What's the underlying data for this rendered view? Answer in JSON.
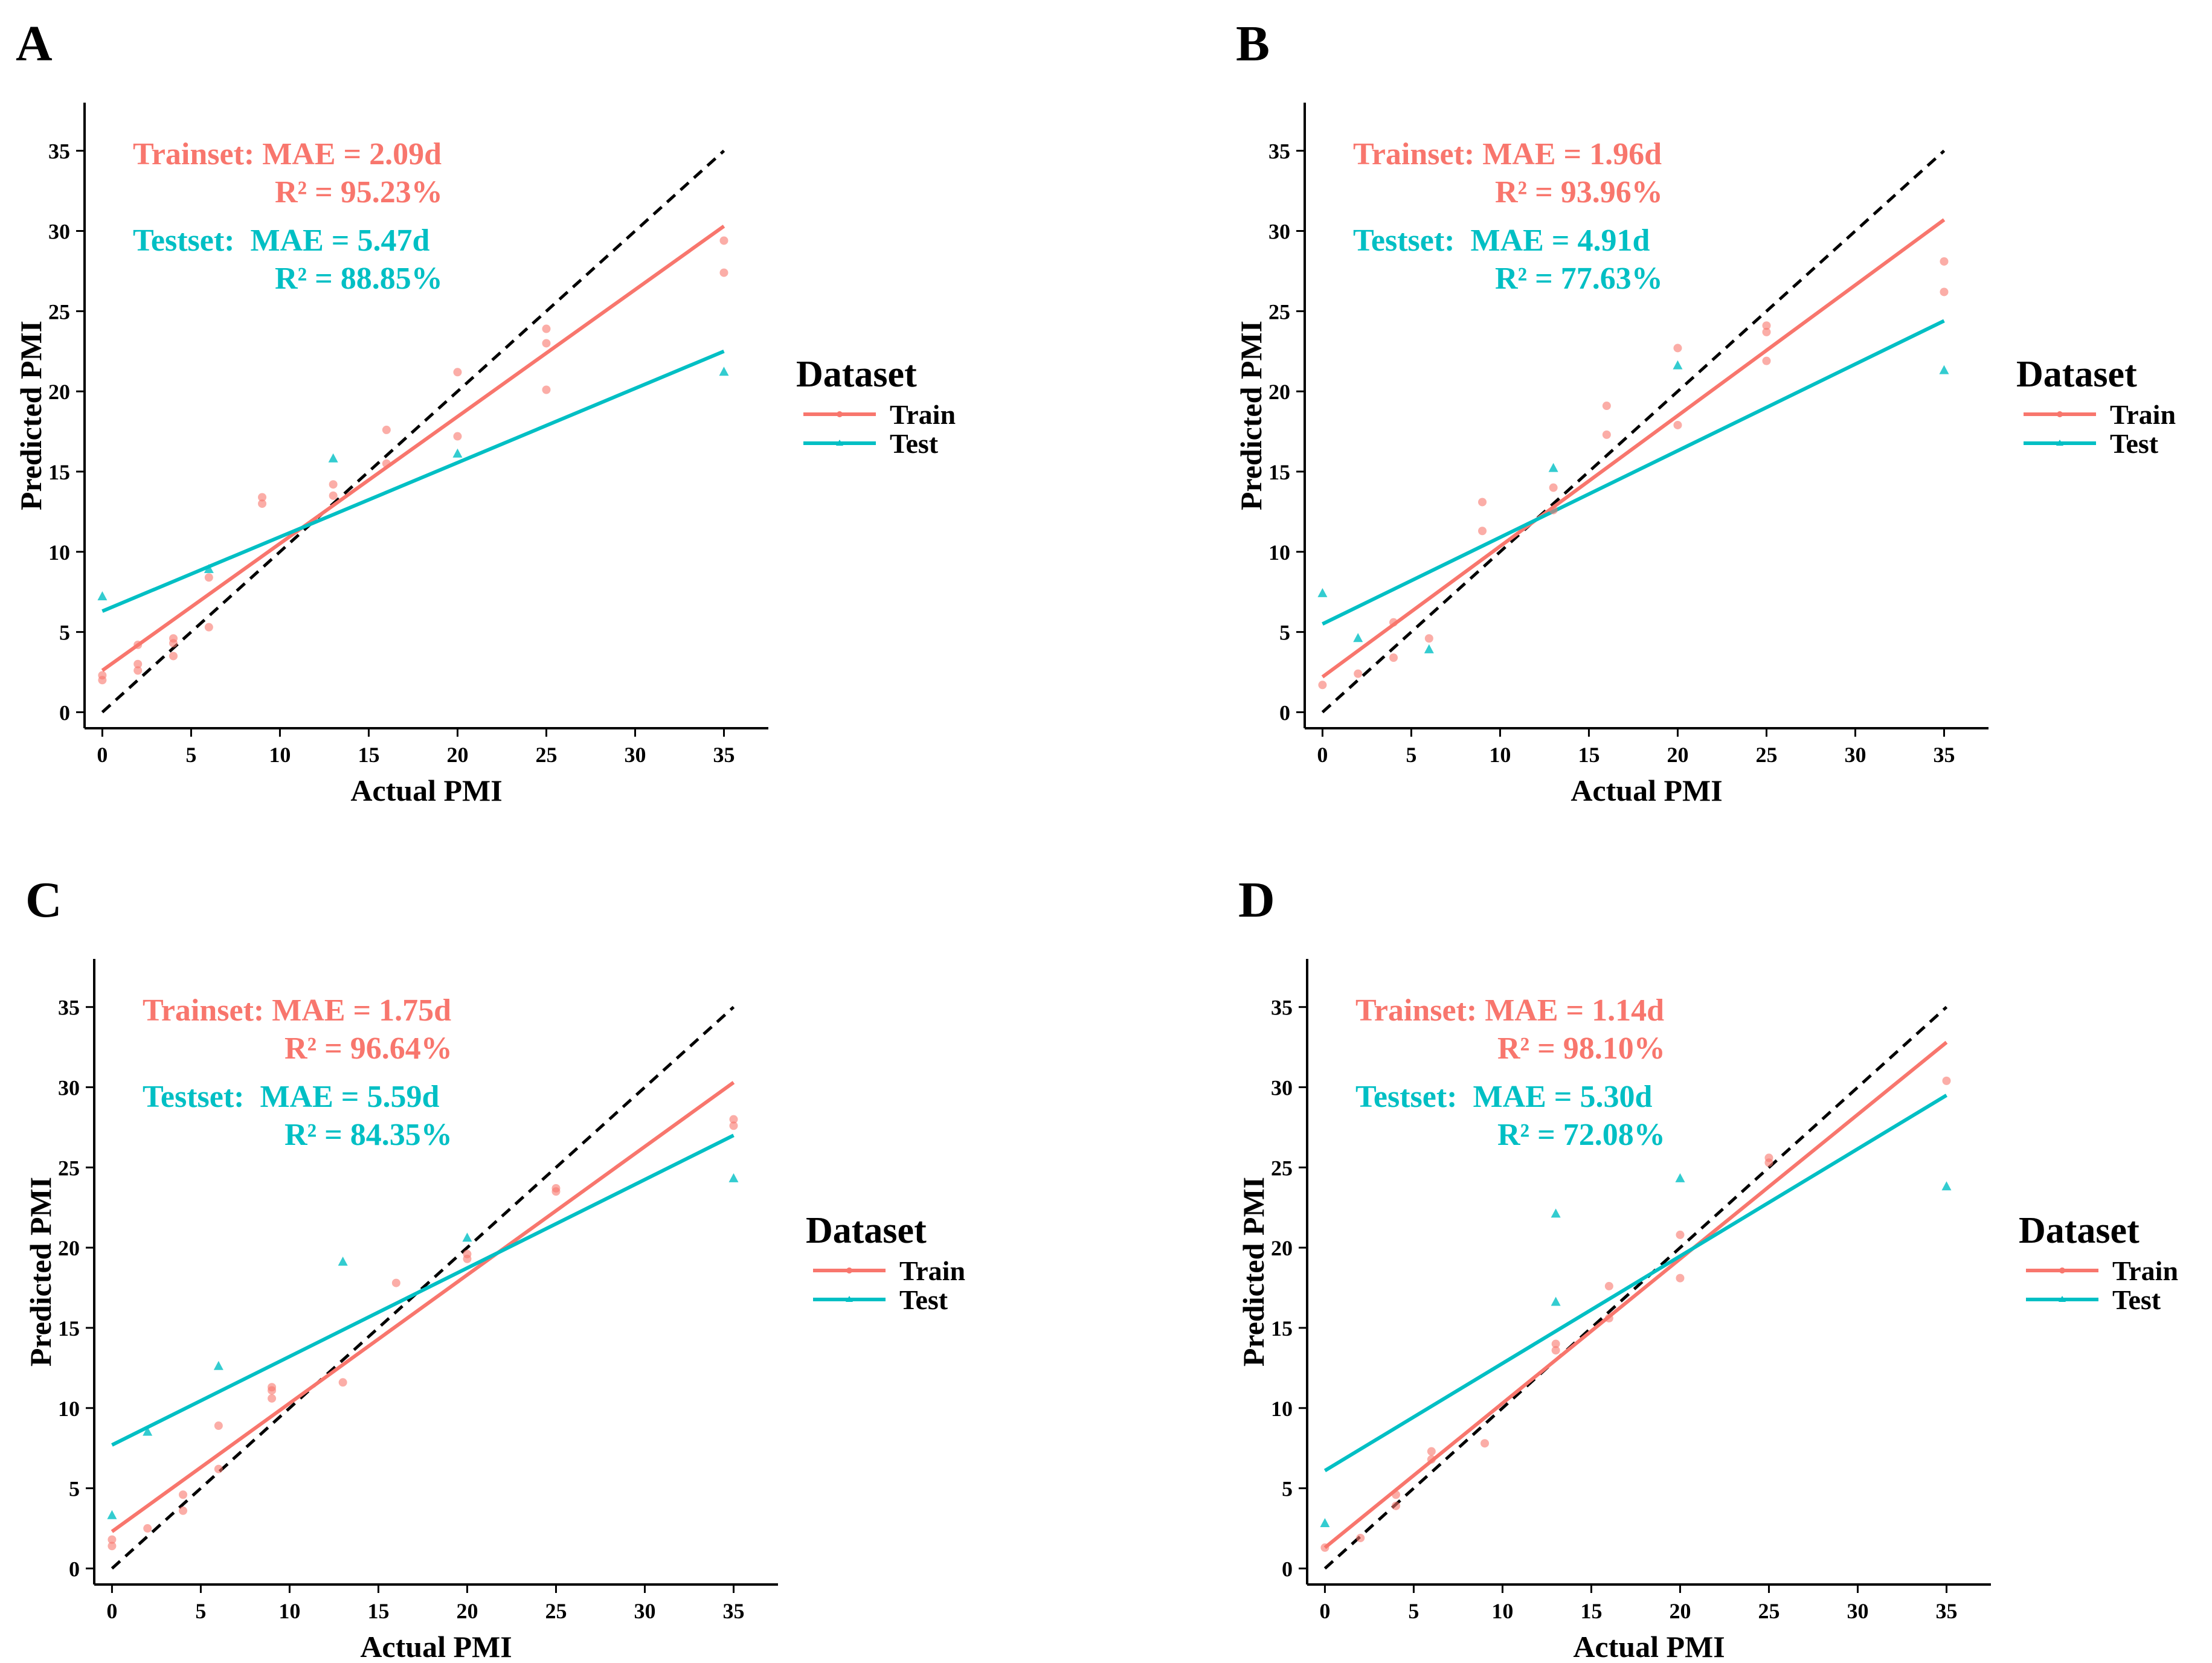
{
  "colors": {
    "train": "#F8766D",
    "test": "#00BFC4",
    "axis": "#000000"
  },
  "legend": {
    "title": "Dataset",
    "train_label": "Train",
    "test_label": "Test"
  },
  "chart_data": [
    {
      "panel": "A",
      "type": "scatter",
      "xlabel": "Actual PMI",
      "ylabel": "Predicted PMI",
      "xlim": [
        -1,
        37.5
      ],
      "ylim": [
        -1,
        38
      ],
      "xticks": [
        0,
        5,
        10,
        15,
        20,
        25,
        30,
        35
      ],
      "yticks": [
        0,
        5,
        10,
        15,
        20,
        25,
        30,
        35
      ],
      "stats": {
        "train_line1": "Trainset: MAE = 2.09d",
        "train_line2": "R² = 95.23%",
        "test_line1": "Testset:  MAE = 5.47d",
        "test_line2": "R² = 88.85%"
      },
      "identity_line": [
        [
          0,
          0
        ],
        [
          35,
          35
        ]
      ],
      "train_fit": [
        [
          0,
          2.6
        ],
        [
          35,
          30.3
        ]
      ],
      "test_fit": [
        [
          0,
          6.3
        ],
        [
          35,
          22.5
        ]
      ],
      "series": [
        {
          "name": "Train",
          "marker": "circle",
          "points": [
            [
              0,
              2.0
            ],
            [
              0,
              2.3
            ],
            [
              2,
              2.6
            ],
            [
              2,
              3.0
            ],
            [
              2,
              4.2
            ],
            [
              4,
              3.5
            ],
            [
              4,
              4.3
            ],
            [
              4,
              4.6
            ],
            [
              6,
              5.3
            ],
            [
              6,
              8.4
            ],
            [
              9,
              13.0
            ],
            [
              9,
              13.4
            ],
            [
              13,
              13.5
            ],
            [
              13,
              14.2
            ],
            [
              16,
              15.5
            ],
            [
              16,
              17.6
            ],
            [
              20,
              17.2
            ],
            [
              20,
              21.2
            ],
            [
              25,
              20.1
            ],
            [
              25,
              23.0
            ],
            [
              25,
              23.9
            ],
            [
              35,
              27.4
            ],
            [
              35,
              29.4
            ]
          ]
        },
        {
          "name": "Test",
          "marker": "triangle",
          "points": [
            [
              0,
              7.2
            ],
            [
              6,
              8.9
            ],
            [
              13,
              15.8
            ],
            [
              20,
              16.1
            ],
            [
              35,
              21.2
            ]
          ]
        }
      ]
    },
    {
      "panel": "B",
      "type": "scatter",
      "xlabel": "Actual PMI",
      "ylabel": "Predicted PMI",
      "xlim": [
        -1,
        37.5
      ],
      "ylim": [
        -1,
        38
      ],
      "xticks": [
        0,
        5,
        10,
        15,
        20,
        25,
        30,
        35
      ],
      "yticks": [
        0,
        5,
        10,
        15,
        20,
        25,
        30,
        35
      ],
      "stats": {
        "train_line1": "Trainset: MAE = 1.96d",
        "train_line2": "R² = 93.96%",
        "test_line1": "Testset:  MAE = 4.91d",
        "test_line2": "R² = 77.63%"
      },
      "identity_line": [
        [
          0,
          0
        ],
        [
          35,
          35
        ]
      ],
      "train_fit": [
        [
          0,
          2.2
        ],
        [
          35,
          30.7
        ]
      ],
      "test_fit": [
        [
          0,
          5.5
        ],
        [
          35,
          24.4
        ]
      ],
      "series": [
        {
          "name": "Train",
          "marker": "circle",
          "points": [
            [
              0,
              1.7
            ],
            [
              2,
              2.4
            ],
            [
              4,
              3.4
            ],
            [
              4,
              5.6
            ],
            [
              6,
              4.6
            ],
            [
              9,
              11.3
            ],
            [
              9,
              13.1
            ],
            [
              13,
              14.0
            ],
            [
              13,
              12.6
            ],
            [
              16,
              17.3
            ],
            [
              16,
              19.1
            ],
            [
              20,
              17.9
            ],
            [
              20,
              22.7
            ],
            [
              25,
              21.9
            ],
            [
              25,
              23.7
            ],
            [
              25,
              24.1
            ],
            [
              35,
              26.2
            ],
            [
              35,
              28.1
            ]
          ]
        },
        {
          "name": "Test",
          "marker": "triangle",
          "points": [
            [
              0,
              7.4
            ],
            [
              2,
              4.6
            ],
            [
              6,
              3.9
            ],
            [
              13,
              15.2
            ],
            [
              20,
              21.6
            ],
            [
              35,
              21.3
            ]
          ]
        }
      ]
    },
    {
      "panel": "C",
      "type": "scatter",
      "xlabel": "Actual PMI",
      "ylabel": "Predicted PMI",
      "xlim": [
        -1,
        37.5
      ],
      "ylim": [
        -1,
        38
      ],
      "xticks": [
        0,
        5,
        10,
        15,
        20,
        25,
        30,
        35
      ],
      "yticks": [
        0,
        5,
        10,
        15,
        20,
        25,
        30,
        35
      ],
      "stats": {
        "train_line1": "Trainset: MAE = 1.75d",
        "train_line2": "R² = 96.64%",
        "test_line1": "Testset:  MAE = 5.59d",
        "test_line2": "R² = 84.35%"
      },
      "identity_line": [
        [
          0,
          0
        ],
        [
          35,
          35
        ]
      ],
      "train_fit": [
        [
          0,
          2.3
        ],
        [
          35,
          30.3
        ]
      ],
      "test_fit": [
        [
          0,
          7.7
        ],
        [
          35,
          27.0
        ]
      ],
      "series": [
        {
          "name": "Train",
          "marker": "circle",
          "points": [
            [
              0,
              1.4
            ],
            [
              0,
              1.8
            ],
            [
              2,
              2.5
            ],
            [
              4,
              3.6
            ],
            [
              4,
              4.6
            ],
            [
              6,
              6.2
            ],
            [
              6,
              8.9
            ],
            [
              9,
              10.6
            ],
            [
              9,
              11.1
            ],
            [
              9,
              11.3
            ],
            [
              13,
              11.6
            ],
            [
              16,
              17.8
            ],
            [
              20,
              19.3
            ],
            [
              20,
              19.6
            ],
            [
              25,
              23.5
            ],
            [
              25,
              23.7
            ],
            [
              35,
              27.6
            ],
            [
              35,
              28.0
            ]
          ]
        },
        {
          "name": "Test",
          "marker": "triangle",
          "points": [
            [
              0,
              3.3
            ],
            [
              2,
              8.5
            ],
            [
              6,
              12.6
            ],
            [
              13,
              19.1
            ],
            [
              20,
              20.6
            ],
            [
              35,
              24.3
            ]
          ]
        }
      ]
    },
    {
      "panel": "D",
      "type": "scatter",
      "xlabel": "Actual PMI",
      "ylabel": "Predicted PMI",
      "xlim": [
        -1,
        37.5
      ],
      "ylim": [
        -1,
        38
      ],
      "xticks": [
        0,
        5,
        10,
        15,
        20,
        25,
        30,
        35
      ],
      "yticks": [
        0,
        5,
        10,
        15,
        20,
        25,
        30,
        35
      ],
      "stats": {
        "train_line1": "Trainset: MAE = 1.14d",
        "train_line2": "R² = 98.10%",
        "test_line1": "Testset:  MAE = 5.30d",
        "test_line2": "R² = 72.08%"
      },
      "identity_line": [
        [
          0,
          0
        ],
        [
          35,
          35
        ]
      ],
      "train_fit": [
        [
          0,
          1.3
        ],
        [
          35,
          32.8
        ]
      ],
      "test_fit": [
        [
          0,
          6.1
        ],
        [
          35,
          29.5
        ]
      ],
      "series": [
        {
          "name": "Train",
          "marker": "circle",
          "points": [
            [
              0,
              1.3
            ],
            [
              2,
              1.9
            ],
            [
              4,
              3.9
            ],
            [
              4,
              4.6
            ],
            [
              6,
              6.8
            ],
            [
              6,
              7.3
            ],
            [
              9,
              7.8
            ],
            [
              13,
              13.6
            ],
            [
              13,
              14.0
            ],
            [
              16,
              15.6
            ],
            [
              16,
              17.6
            ],
            [
              20,
              18.1
            ],
            [
              20,
              20.8
            ],
            [
              25,
              25.3
            ],
            [
              25,
              25.6
            ],
            [
              35,
              30.4
            ]
          ]
        },
        {
          "name": "Test",
          "marker": "triangle",
          "points": [
            [
              0,
              2.8
            ],
            [
              13,
              16.6
            ],
            [
              13,
              22.1
            ],
            [
              20,
              24.3
            ],
            [
              35,
              23.8
            ]
          ]
        }
      ]
    }
  ]
}
